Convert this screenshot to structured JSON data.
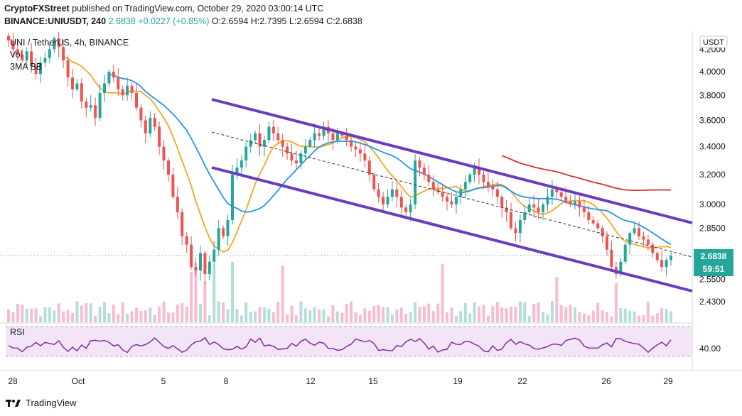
{
  "header": {
    "brand": "CryptoFXStreet",
    "published": "published on TradingView.com, October 29, 2020 03:00:14 UTC",
    "symbol_line": "BINANCE:UNIUSDT, 240",
    "change": "2.6838 +0.0227 (+0.85%)",
    "ohlc": "O:2.6594 H:2.7395 L:2.6594 C:2.6838"
  },
  "legend": {
    "title": "UNI / TetherUS, 4h, BINANCE",
    "vol": "Vol",
    "ma": "3MA BB",
    "rsi": "RSI"
  },
  "price_axis": {
    "currency": "USDT",
    "ticks": [
      "4.2000",
      "4.0000",
      "3.8000",
      "3.6000",
      "3.4000",
      "3.2000",
      "3.0000",
      "2.8500",
      "2.5500",
      "2.4300"
    ],
    "last_price": "2.6838",
    "countdown": "59:51",
    "rsi_tick": "40.00"
  },
  "time_axis": {
    "ticks": [
      "28",
      "Oct",
      "5",
      "8",
      "12",
      "15",
      "19",
      "22",
      "26",
      "29"
    ]
  },
  "footer": {
    "logo_text": "TradingView"
  },
  "colors": {
    "up": "#26a69a",
    "down": "#ef5350",
    "ma_fast": "#f5a623",
    "ma_mid": "#2196f3",
    "ma_slow": "#d32f2f",
    "channel": "#6a3cc0",
    "rsi_line": "#7b1fa2",
    "rsi_band": "#f3e5f5"
  },
  "chart_data": {
    "type": "candlestick",
    "title": "UNI / TetherUS, 4h, BINANCE",
    "price_scale": "log",
    "price_range": [
      2.37,
      4.3
    ],
    "last_price": 2.6838,
    "x_ticks": [
      "28",
      "Oct",
      "5",
      "8",
      "12",
      "15",
      "19",
      "22",
      "26",
      "29"
    ],
    "series_note": "approximate OHLC path per 4h bar",
    "closes": [
      4.28,
      4.2,
      4.15,
      4.1,
      4.18,
      4.05,
      3.98,
      4.08,
      4.12,
      4.2,
      4.3,
      4.22,
      4.1,
      3.95,
      3.85,
      3.9,
      3.75,
      3.7,
      3.72,
      3.62,
      3.82,
      3.9,
      4.0,
      3.95,
      3.85,
      3.8,
      3.88,
      3.82,
      3.7,
      3.6,
      3.5,
      3.62,
      3.55,
      3.4,
      3.3,
      3.2,
      3.05,
      2.95,
      2.8,
      2.75,
      2.62,
      2.6,
      2.7,
      2.58,
      2.65,
      2.72,
      2.85,
      2.8,
      2.9,
      3.2,
      3.25,
      3.3,
      3.4,
      3.45,
      3.5,
      3.4,
      3.45,
      3.55,
      3.5,
      3.45,
      3.4,
      3.35,
      3.3,
      3.28,
      3.35,
      3.4,
      3.45,
      3.5,
      3.48,
      3.55,
      3.5,
      3.45,
      3.5,
      3.48,
      3.45,
      3.4,
      3.38,
      3.35,
      3.3,
      3.2,
      3.1,
      3.05,
      3.0,
      3.05,
      3.1,
      3.05,
      2.98,
      2.95,
      3.0,
      3.3,
      3.25,
      3.2,
      3.15,
      3.1,
      3.08,
      3.05,
      3.02,
      3.0,
      3.05,
      3.1,
      3.15,
      3.2,
      3.25,
      3.2,
      3.15,
      3.12,
      3.1,
      3.05,
      2.98,
      2.95,
      2.85,
      2.82,
      2.9,
      2.95,
      3.0,
      2.98,
      2.95,
      3.0,
      3.05,
      3.1,
      3.08,
      3.05,
      3.02,
      3.0,
      3.02,
      2.98,
      2.95,
      2.9,
      2.88,
      2.85,
      2.8,
      2.72,
      2.62,
      2.58,
      2.65,
      2.75,
      2.82,
      2.85,
      2.8,
      2.78,
      2.75,
      2.7,
      2.66,
      2.62,
      2.66,
      2.6838
    ],
    "volume_note": "relative volume bars",
    "moving_averages": [
      {
        "name": "MA fast",
        "color": "#f5a623"
      },
      {
        "name": "MA mid",
        "color": "#2196f3"
      },
      {
        "name": "MA slow",
        "color": "#d32f2f"
      }
    ],
    "rsi": {
      "label": "RSI",
      "tick": 40.0,
      "range": [
        20,
        80
      ]
    }
  }
}
